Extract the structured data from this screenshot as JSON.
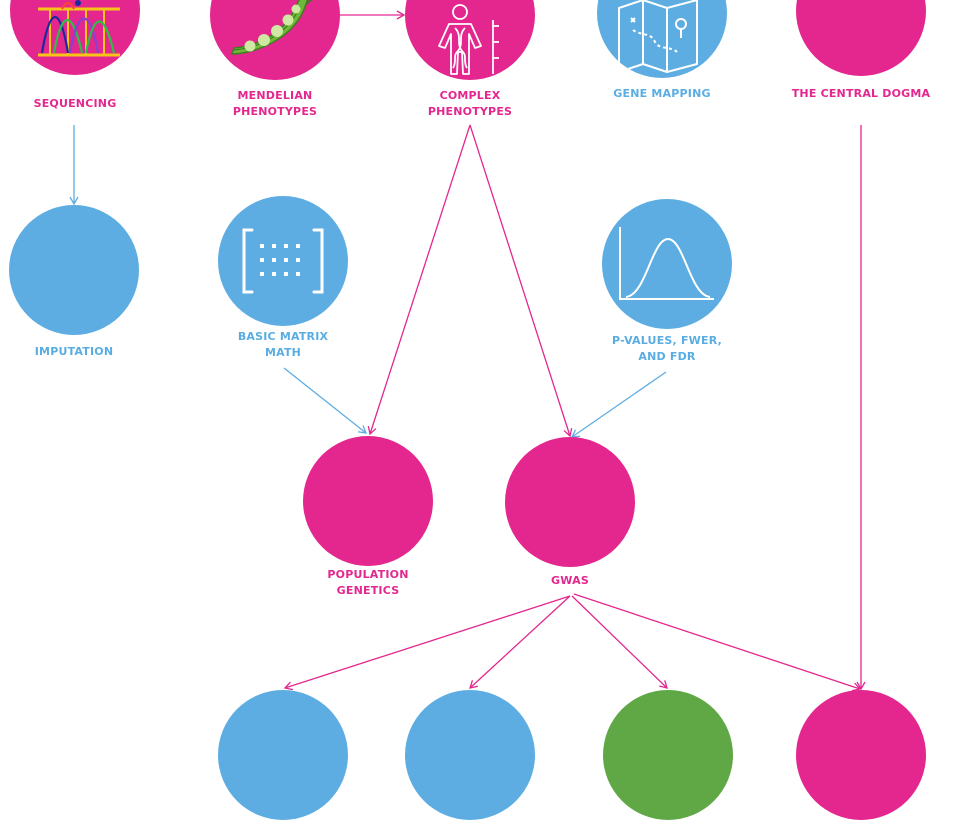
{
  "colors": {
    "pink": "#e3278f",
    "blue": "#5dade2",
    "green": "#5fa845",
    "arrow_pink": "#e3278f",
    "arrow_blue": "#5dade2"
  },
  "nodes": {
    "sequencing": {
      "label_lines": [
        "SEQUENCING"
      ],
      "color": "pink",
      "icon": "chromatogram-icon"
    },
    "mendelian_phenotypes": {
      "label_lines": [
        "MENDELIAN",
        "PHENOTYPES"
      ],
      "color": "pink",
      "icon": "pea-pod-icon"
    },
    "complex_phenotypes": {
      "label_lines": [
        "COMPLEX",
        "PHENOTYPES"
      ],
      "color": "pink",
      "icon": "human-dna-icon"
    },
    "gene_mapping": {
      "label_lines": [
        "GENE MAPPING"
      ],
      "color": "blue",
      "icon": "map-icon"
    },
    "central_dogma": {
      "label_lines": [
        "THE CENTRAL DOGMA"
      ],
      "color": "pink",
      "icon": ""
    },
    "imputation": {
      "label_lines": [
        "IMPUTATION"
      ],
      "color": "blue",
      "icon": ""
    },
    "basic_matrix_math": {
      "label_lines": [
        "BASIC MATRIX",
        "MATH"
      ],
      "color": "blue",
      "icon": "matrix-icon"
    },
    "p_values": {
      "label_lines": [
        "P-VALUES, FWER,",
        "AND FDR"
      ],
      "color": "blue",
      "icon": "bell-curve-icon"
    },
    "population_genetics": {
      "label_lines": [
        "POPULATION",
        "GENETICS"
      ],
      "color": "pink",
      "icon": ""
    },
    "gwas": {
      "label_lines": [
        "GWAS"
      ],
      "color": "pink",
      "icon": ""
    },
    "bottom_1": {
      "label_lines": [],
      "color": "blue",
      "icon": ""
    },
    "bottom_2": {
      "label_lines": [],
      "color": "blue",
      "icon": ""
    },
    "bottom_3": {
      "label_lines": [],
      "color": "green",
      "icon": ""
    },
    "bottom_4": {
      "label_lines": [],
      "color": "pink",
      "icon": ""
    }
  },
  "edges": [
    {
      "from": "mendelian_phenotypes",
      "to": "complex_phenotypes",
      "color": "pink"
    },
    {
      "from": "sequencing",
      "to": "imputation",
      "color": "blue"
    },
    {
      "from": "complex_phenotypes",
      "to": "population_genetics",
      "color": "pink"
    },
    {
      "from": "complex_phenotypes",
      "to": "gwas",
      "color": "pink"
    },
    {
      "from": "basic_matrix_math",
      "to": "population_genetics",
      "color": "blue"
    },
    {
      "from": "p_values",
      "to": "gwas",
      "color": "blue"
    },
    {
      "from": "central_dogma",
      "to": "bottom_4",
      "color": "pink"
    },
    {
      "from": "gwas",
      "to": "bottom_1",
      "color": "pink"
    },
    {
      "from": "gwas",
      "to": "bottom_2",
      "color": "pink"
    },
    {
      "from": "gwas",
      "to": "bottom_3",
      "color": "pink"
    },
    {
      "from": "gwas",
      "to": "bottom_4",
      "color": "pink"
    }
  ]
}
